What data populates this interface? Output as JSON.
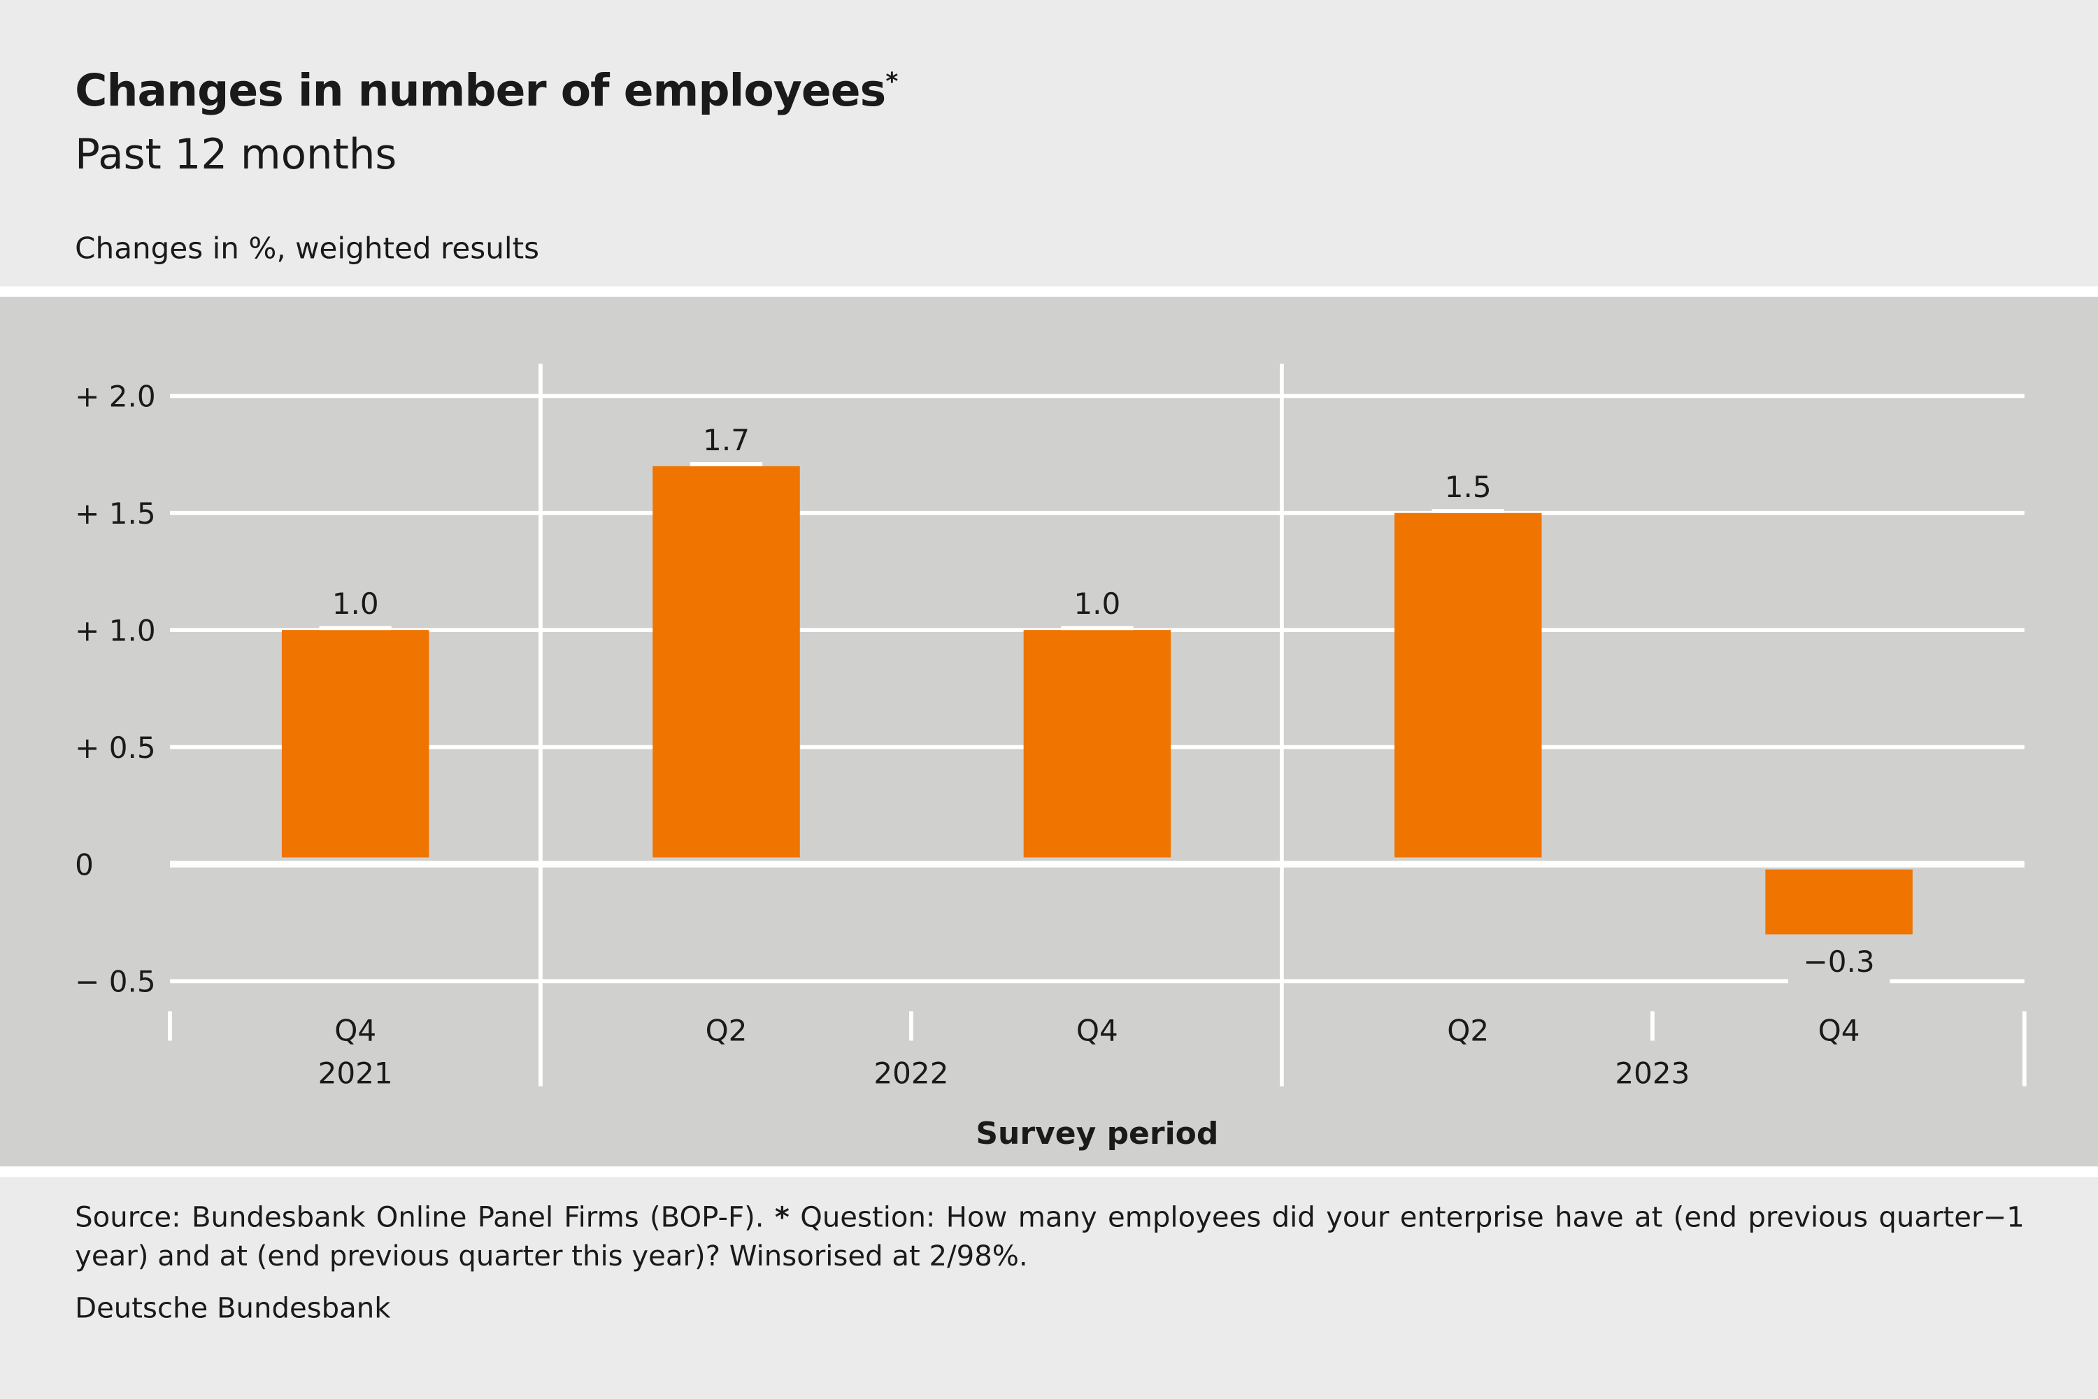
{
  "header": {
    "title": "Changes in number of employees",
    "title_mark": "*",
    "subtitle": "Past 12 months",
    "units": "Changes in %, weighted results"
  },
  "footer": {
    "source": "Source: Bundesbank Online Panel Firms (BOP-F). ",
    "note_mark": "*",
    "note": " Question: How many employees did your enterprise have at (end previous quarter−1 year) and at (end previous quarter this year)? Winsorised at 2/98%.",
    "credit": "Deutsche Bundesbank"
  },
  "colors": {
    "bar": "#ef7400",
    "plot_bg": "#d0d0ce",
    "page_bg": "#ebebeb",
    "grid": "#ffffff"
  },
  "chart_data": {
    "type": "bar",
    "categories": [
      "Q4",
      "Q2",
      "Q4",
      "Q2",
      "Q4"
    ],
    "years": [
      "2021",
      "2022",
      "2023"
    ],
    "values": [
      1.0,
      1.7,
      1.0,
      1.5,
      -0.3
    ],
    "data_labels": [
      "1.0",
      "1.7",
      "1.0",
      "1.5",
      "−0.3"
    ],
    "xlabel": "Survey period",
    "ylabel": "",
    "ylim": [
      -0.5,
      2.0
    ],
    "yticks": [
      2.0,
      1.5,
      1.0,
      0.5,
      0,
      -0.5
    ],
    "ytick_labels": [
      "+ 2.0",
      "+ 1.5",
      "+ 1.0",
      "+ 0.5",
      "0",
      "− 0.5"
    ],
    "grid": true,
    "legend": "none"
  }
}
